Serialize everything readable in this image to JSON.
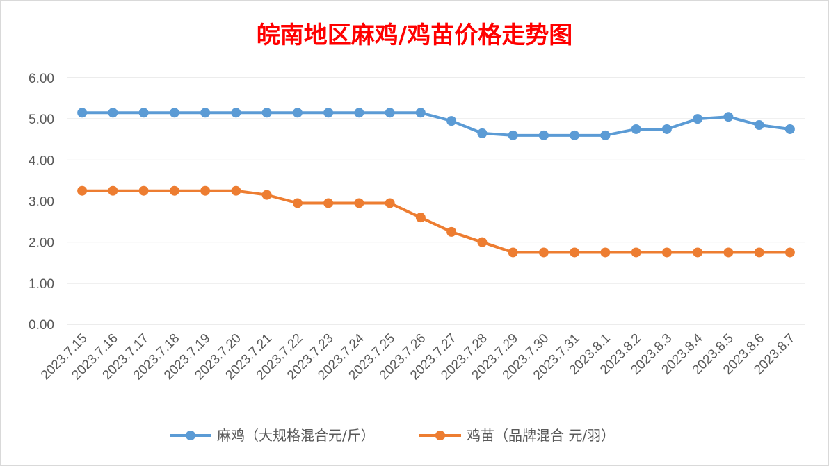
{
  "chart_data": {
    "type": "line",
    "title": "皖南地区麻鸡/鸡苗价格走势图",
    "x": [
      "2023.7.15",
      "2023.7.16",
      "2023.7.17",
      "2023.7.18",
      "2023.7.19",
      "2023.7.20",
      "2023.7.21",
      "2023.7.22",
      "2023.7.23",
      "2023.7.24",
      "2023.7.25",
      "2023.7.26",
      "2023.7.27",
      "2023.7.28",
      "2023.7.29",
      "2023.7.30",
      "2023.7.31",
      "2023.8.1",
      "2023.8.2",
      "2023.8.3",
      "2023.8.4",
      "2023.8.5",
      "2023.8.6",
      "2023.8.7"
    ],
    "y_ticks": [
      "0.00",
      "1.00",
      "2.00",
      "3.00",
      "4.00",
      "5.00",
      "6.00"
    ],
    "ylim": [
      0,
      6
    ],
    "grid": true,
    "legend_position": "bottom",
    "series": [
      {
        "name": "麻鸡（大规格混合元/斤）",
        "color": "#5b9bd5",
        "values": [
          5.15,
          5.15,
          5.15,
          5.15,
          5.15,
          5.15,
          5.15,
          5.15,
          5.15,
          5.15,
          5.15,
          5.15,
          4.95,
          4.65,
          4.6,
          4.6,
          4.6,
          4.6,
          4.75,
          4.75,
          5.0,
          5.05,
          4.85,
          4.75
        ]
      },
      {
        "name": "鸡苗（品牌混合 元/羽）",
        "color": "#ed7d31",
        "values": [
          3.25,
          3.25,
          3.25,
          3.25,
          3.25,
          3.25,
          3.15,
          2.95,
          2.95,
          2.95,
          2.95,
          2.6,
          2.25,
          2.0,
          1.75,
          1.75,
          1.75,
          1.75,
          1.75,
          1.75,
          1.75,
          1.75,
          1.75,
          1.75
        ]
      }
    ]
  }
}
